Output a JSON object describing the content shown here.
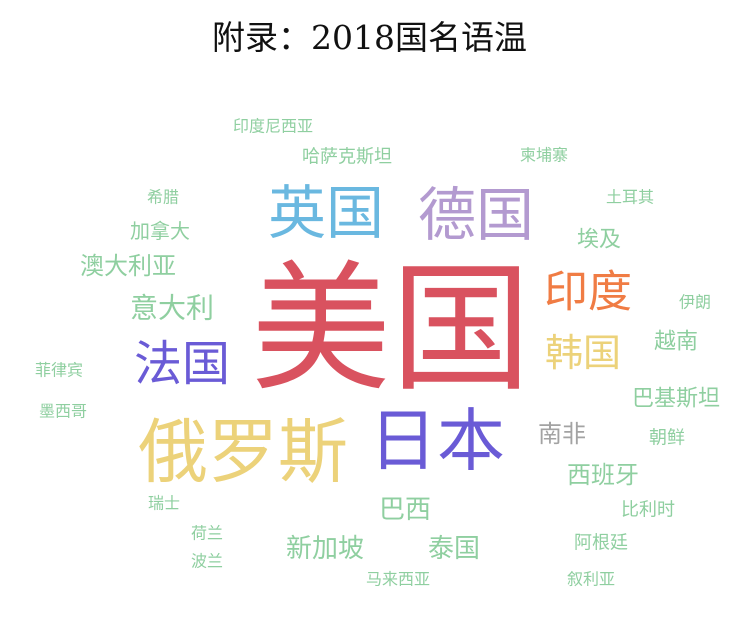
{
  "title": "附录：2018国名语温",
  "chart_data": {
    "type": "wordcloud",
    "title": "附录：2018国名语温",
    "words": [
      {
        "text": "美国",
        "weight": 100,
        "color": "#d9525f"
      },
      {
        "text": "俄罗斯",
        "weight": 50,
        "color": "#ecd27a"
      },
      {
        "text": "日本",
        "weight": 48,
        "color": "#6a5bd6"
      },
      {
        "text": "英国",
        "weight": 42,
        "color": "#6ab8e0"
      },
      {
        "text": "德国",
        "weight": 42,
        "color": "#b39ad0"
      },
      {
        "text": "法国",
        "weight": 34,
        "color": "#6a5bd6"
      },
      {
        "text": "印度",
        "weight": 32,
        "color": "#f07c44"
      },
      {
        "text": "韩国",
        "weight": 28,
        "color": "#ecd27a"
      },
      {
        "text": "意大利",
        "weight": 20,
        "color": "#8fcfa0"
      },
      {
        "text": "澳大利亚",
        "weight": 16,
        "color": "#8fcfa0"
      },
      {
        "text": "南非",
        "weight": 18,
        "color": "#a3a3a3"
      },
      {
        "text": "西班牙",
        "weight": 17,
        "color": "#8fcfa0"
      },
      {
        "text": "巴西",
        "weight": 18,
        "color": "#8fcfa0"
      },
      {
        "text": "新加坡",
        "weight": 18,
        "color": "#8fcfa0"
      },
      {
        "text": "泰国",
        "weight": 18,
        "color": "#8fcfa0"
      },
      {
        "text": "越南",
        "weight": 15,
        "color": "#8fcfa0"
      },
      {
        "text": "巴基斯坦",
        "weight": 15,
        "color": "#8fcfa0"
      },
      {
        "text": "埃及",
        "weight": 15,
        "color": "#8fcfa0"
      },
      {
        "text": "加拿大",
        "weight": 14,
        "color": "#8fcfa0"
      },
      {
        "text": "哈萨克斯坦",
        "weight": 12,
        "color": "#8fcfa0"
      },
      {
        "text": "印度尼西亚",
        "weight": 11,
        "color": "#8fcfa0"
      },
      {
        "text": "柬埔寨",
        "weight": 11,
        "color": "#8fcfa0"
      },
      {
        "text": "土耳其",
        "weight": 11,
        "color": "#8fcfa0"
      },
      {
        "text": "希腊",
        "weight": 11,
        "color": "#8fcfa0"
      },
      {
        "text": "伊朗",
        "weight": 11,
        "color": "#8fcfa0"
      },
      {
        "text": "朝鲜",
        "weight": 12,
        "color": "#8fcfa0"
      },
      {
        "text": "比利时",
        "weight": 12,
        "color": "#8fcfa0"
      },
      {
        "text": "阿根廷",
        "weight": 12,
        "color": "#8fcfa0"
      },
      {
        "text": "叙利亚",
        "weight": 11,
        "color": "#8fcfa0"
      },
      {
        "text": "马来西亚",
        "weight": 11,
        "color": "#8fcfa0"
      },
      {
        "text": "菲律宾",
        "weight": 11,
        "color": "#8fcfa0"
      },
      {
        "text": "墨西哥",
        "weight": 11,
        "color": "#8fcfa0"
      },
      {
        "text": "瑞士",
        "weight": 11,
        "color": "#8fcfa0"
      },
      {
        "text": "荷兰",
        "weight": 11,
        "color": "#8fcfa0"
      },
      {
        "text": "波兰",
        "weight": 11,
        "color": "#8fcfa0"
      }
    ]
  }
}
